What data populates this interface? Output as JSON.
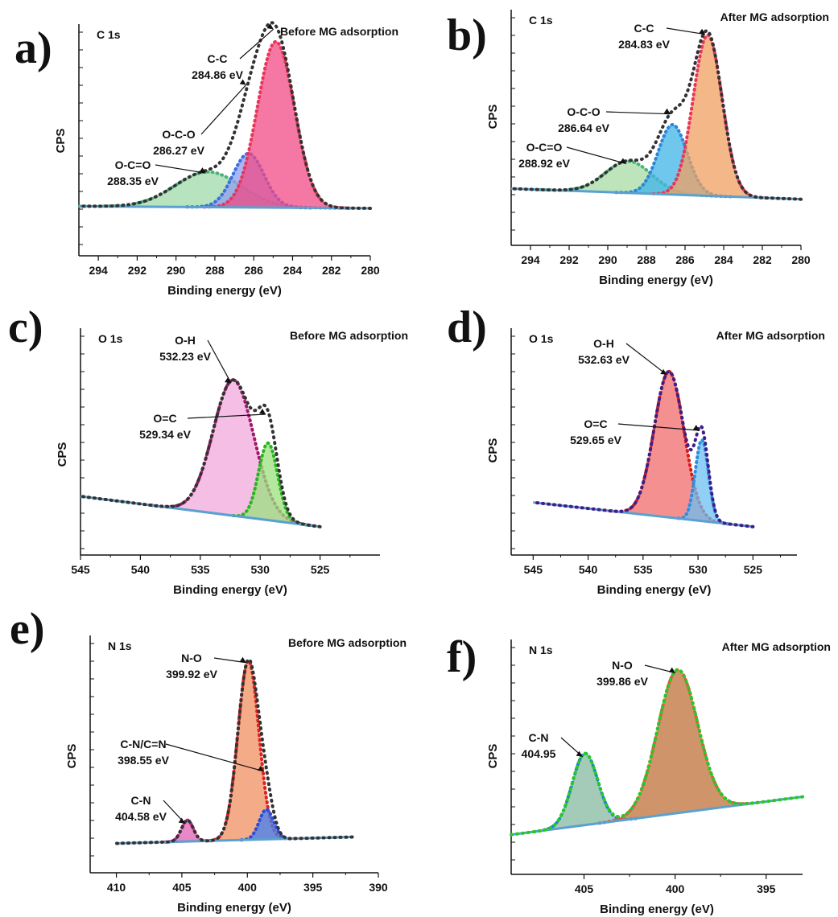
{
  "chart_data": [
    {
      "id": "a",
      "panel_label": "a)",
      "type": "line",
      "core_level": "C 1s",
      "title": "Before MG adsorption",
      "xlabel": "Binding energy (eV)",
      "ylabel": "CPS",
      "xlim": [
        295,
        280
      ],
      "x_ticks": [
        294,
        292,
        290,
        288,
        286,
        284,
        282,
        280
      ],
      "x_tick_labels": [
        "294",
        "292",
        "290",
        "288",
        "286",
        "284",
        "282",
        "280"
      ],
      "baseline": {
        "x": [
          295,
          280
        ],
        "y": [
          0.2,
          0.19
        ]
      },
      "envelope_color": "#333333",
      "series": [
        {
          "center": 288.35,
          "height": 0.17,
          "sigma": 1.7,
          "color": "#4bb37a",
          "fill": "#9fd9a8"
        },
        {
          "center": 286.27,
          "height": 0.26,
          "sigma": 0.8,
          "color": "#3a6fe0",
          "fill": "#8f9ff2"
        },
        {
          "center": 284.86,
          "height": 0.8,
          "sigma": 0.95,
          "color": "#e8365a",
          "fill": "#f04a86"
        }
      ],
      "annotations": [
        {
          "lines": [
            "C-C",
            "284.86 eV"
          ],
          "peak": 284.86,
          "pos": "left"
        },
        {
          "lines": [
            "O-C-O",
            "286.27 eV"
          ],
          "peak": 286.27,
          "pos": "left"
        },
        {
          "lines": [
            "O-C=O",
            "288.35 eV"
          ],
          "peak": 288.35,
          "pos": "left"
        }
      ]
    },
    {
      "id": "b",
      "panel_label": "b)",
      "type": "line",
      "core_level": "C 1s",
      "title": "After MG adsorption",
      "xlabel": "Binding energy (eV)",
      "ylabel": "CPS",
      "xlim": [
        295,
        280
      ],
      "x_ticks": [
        294,
        292,
        290,
        288,
        286,
        284,
        282,
        280
      ],
      "x_tick_labels": [
        "294",
        "292",
        "290",
        "288",
        "286",
        "284",
        "282",
        "280"
      ],
      "baseline": {
        "x": [
          295,
          280
        ],
        "y": [
          0.23,
          0.18
        ]
      },
      "envelope_color": "#333333",
      "series": [
        {
          "center": 288.92,
          "height": 0.15,
          "sigma": 1.2,
          "color": "#4bb37a",
          "fill": "#a7dba4"
        },
        {
          "center": 286.64,
          "height": 0.33,
          "sigma": 0.75,
          "color": "#2b86d9",
          "fill": "#3fb4e8"
        },
        {
          "center": 284.83,
          "height": 0.76,
          "sigma": 0.75,
          "color": "#e8365a",
          "fill": "#f0a060"
        }
      ],
      "annotations": [
        {
          "lines": [
            "C-C",
            "284.83 eV"
          ],
          "peak": 284.83,
          "pos": "left"
        },
        {
          "lines": [
            "O-C-O",
            "286.64 eV"
          ],
          "peak": 286.64,
          "pos": "left"
        },
        {
          "lines": [
            "O-C=O",
            "288.92 eV"
          ],
          "peak": 288.92,
          "pos": "left"
        }
      ]
    },
    {
      "id": "c",
      "panel_label": "c)",
      "type": "line",
      "core_level": "O 1s",
      "title": "Before MG adsorption",
      "xlabel": "Binding energy (eV)",
      "ylabel": "CPS",
      "xlim": [
        545,
        520
      ],
      "x_ticks": [
        545,
        540,
        535,
        530,
        525
      ],
      "x_tick_labels": [
        "545",
        "540",
        "535",
        "530",
        "525"
      ],
      "baseline": {
        "x": [
          545,
          525
        ],
        "y": [
          0.25,
          0.1
        ]
      },
      "envelope_color": "#333333",
      "series": [
        {
          "center": 532.23,
          "height": 0.67,
          "sigma": 1.7,
          "color": "#a0186a",
          "fill": "#f0a8dc"
        },
        {
          "center": 529.34,
          "height": 0.38,
          "sigma": 0.8,
          "color": "#27b51f",
          "fill": "#9be07d"
        }
      ],
      "annotations": [
        {
          "lines": [
            "O-H",
            "532.23 eV"
          ],
          "peak": 532.23,
          "pos": "left"
        },
        {
          "lines": [
            "O=C",
            "529.34 eV"
          ],
          "peak": 529.34,
          "pos": "left"
        }
      ]
    },
    {
      "id": "d",
      "panel_label": "d)",
      "type": "line",
      "core_level": "O 1s",
      "title": "After MG adsorption",
      "xlabel": "Binding energy (eV)",
      "ylabel": "CPS",
      "xlim": [
        547,
        521
      ],
      "x_ticks": [
        545,
        540,
        535,
        530,
        525
      ],
      "x_tick_labels": [
        "545",
        "540",
        "535",
        "530",
        "525"
      ],
      "baseline": {
        "x": [
          545,
          525
        ],
        "y": [
          0.22,
          0.1
        ]
      },
      "envelope_color": "#3d1f8a",
      "series": [
        {
          "center": 532.63,
          "height": 0.72,
          "sigma": 1.35,
          "color": "#d81c1c",
          "fill": "#f06b6b"
        },
        {
          "center": 529.65,
          "height": 0.4,
          "sigma": 0.6,
          "color": "#2c8fe0",
          "fill": "#6dbff0"
        }
      ],
      "annotations": [
        {
          "lines": [
            "O-H",
            "532.63 eV"
          ],
          "peak": 532.63,
          "pos": "left"
        },
        {
          "lines": [
            "O=C",
            "529.65 eV"
          ],
          "peak": 529.65,
          "pos": "left"
        }
      ]
    },
    {
      "id": "e",
      "panel_label": "e)",
      "type": "line",
      "core_level": "N 1s",
      "title": "Before MG adsorption",
      "xlabel": "Binding energy (eV)",
      "ylabel": "CPS",
      "xlim": [
        412,
        390
      ],
      "x_ticks": [
        410,
        405,
        400,
        395,
        390
      ],
      "x_tick_labels": [
        "410",
        "405",
        "400",
        "395",
        "390"
      ],
      "baseline": {
        "x": [
          410,
          392
        ],
        "y": [
          0.1,
          0.13
        ]
      },
      "envelope_color": "#333333",
      "series": [
        {
          "center": 404.58,
          "height": 0.1,
          "sigma": 0.45,
          "color": "#c02090",
          "fill": "#e060b0"
        },
        {
          "center": 399.92,
          "height": 0.84,
          "sigma": 0.8,
          "color": "#e02020",
          "fill": "#f09060"
        },
        {
          "center": 398.55,
          "height": 0.14,
          "sigma": 0.55,
          "color": "#2a4fd8",
          "fill": "#4080f0"
        }
      ],
      "annotations": [
        {
          "lines": [
            "N-O",
            "399.92 eV"
          ],
          "peak": 399.92,
          "pos": "left"
        },
        {
          "lines": [
            "C-N/C=N",
            "398.55 eV"
          ],
          "peak": 398.55,
          "pos": "left"
        },
        {
          "lines": [
            "C-N",
            "404.58 eV"
          ],
          "peak": 404.58,
          "pos": "left"
        }
      ]
    },
    {
      "id": "f",
      "panel_label": "f)",
      "type": "line",
      "core_level": "N 1s",
      "title": "After MG adsorption",
      "xlabel": "Binding energy (eV)",
      "ylabel": "CPS",
      "xlim": [
        409,
        393
      ],
      "x_ticks": [
        405,
        400,
        395
      ],
      "x_tick_labels": [
        "405",
        "400",
        "395"
      ],
      "baseline": {
        "x": [
          409,
          393
        ],
        "y": [
          0.15,
          0.33
        ]
      },
      "envelope_color": "#22cc22",
      "series": [
        {
          "center": 404.95,
          "height": 0.34,
          "sigma": 0.7,
          "color": "#2a7ae0",
          "fill": "#86b8a0"
        },
        {
          "center": 399.86,
          "height": 0.68,
          "sigma": 1.1,
          "color": "#f05050",
          "fill": "#c0703a"
        }
      ],
      "annotations": [
        {
          "lines": [
            "N-O",
            "399.86 eV"
          ],
          "peak": 399.86,
          "pos": "left"
        },
        {
          "lines": [
            "C-N",
            "404.95"
          ],
          "peak": 404.95,
          "pos": "left"
        }
      ]
    }
  ]
}
